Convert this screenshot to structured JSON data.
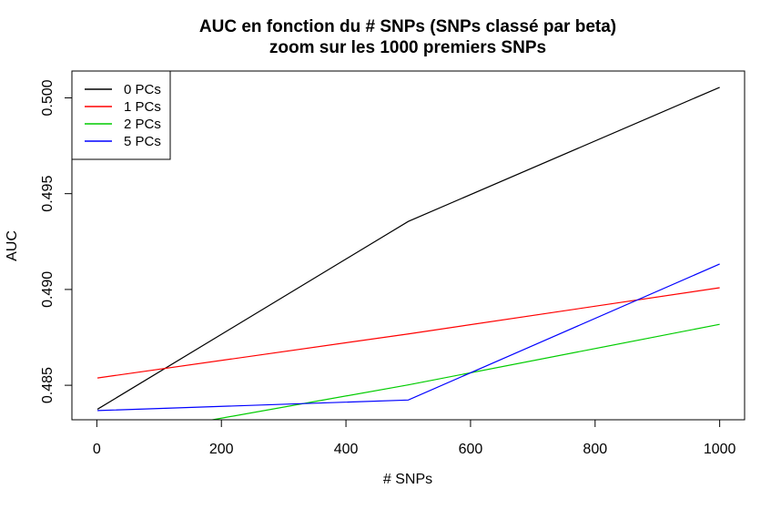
{
  "chart_data": {
    "type": "line",
    "title": "AUC en fonction du # SNPs (SNPs classé par beta)",
    "subtitle": "zoom sur les 1000 premiers SNPs",
    "xlabel": "# SNPs",
    "ylabel": "AUC",
    "xlim": [
      -40,
      1040
    ],
    "ylim": [
      0.4832,
      0.5014
    ],
    "x_ticks": [
      0,
      200,
      400,
      600,
      800,
      1000
    ],
    "y_ticks": [
      0.485,
      0.49,
      0.495,
      0.5
    ],
    "x_tick_labels": [
      "0",
      "200",
      "400",
      "600",
      "800",
      "1000"
    ],
    "y_tick_labels": [
      "0.485",
      "0.490",
      "0.495",
      "0.500"
    ],
    "grid": false,
    "legend_position": "top-left",
    "x": [
      1,
      500,
      1000
    ],
    "series": [
      {
        "name": "0 PCs",
        "color": "#000000",
        "values": [
          0.48375,
          0.49355,
          0.50055
        ]
      },
      {
        "name": "1 PCs",
        "color": "#ff0000",
        "values": [
          0.48538,
          0.48768,
          0.49009
        ]
      },
      {
        "name": "2 PCs",
        "color": "#00cc00",
        "values": [
          0.48213,
          0.48502,
          0.48818
        ]
      },
      {
        "name": "5 PCs",
        "color": "#0000ff",
        "values": [
          0.48368,
          0.48423,
          0.49133
        ]
      }
    ]
  }
}
